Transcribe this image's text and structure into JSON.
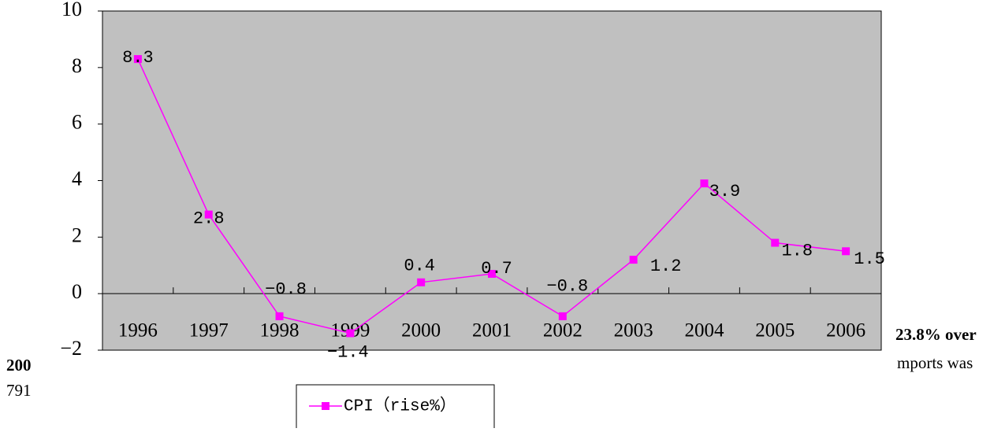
{
  "chart_data": {
    "type": "line",
    "categories": [
      "1996",
      "1997",
      "1998",
      "1999",
      "2000",
      "2001",
      "2002",
      "2003",
      "2004",
      "2005",
      "2006"
    ],
    "series": [
      {
        "name": "CPI（rise%）",
        "color": "#ff00ff",
        "values": [
          8.3,
          2.8,
          -0.8,
          -1.4,
          0.4,
          0.7,
          -0.8,
          1.2,
          3.9,
          1.8,
          1.5
        ],
        "value_labels": [
          "8.3",
          "2.8",
          "−0.8",
          "−1.4",
          "0.4",
          "0.7",
          "−0.8",
          "1.2",
          "3.9",
          "1.8",
          "1.5"
        ]
      }
    ],
    "ylim": [
      -2,
      10
    ],
    "yticks": [
      {
        "value": -2,
        "label": "−2"
      },
      0,
      2,
      4,
      6,
      8,
      10
    ],
    "plot_background": "#c0c0c0",
    "legend": "bottom"
  },
  "background_text": [
    "200",
    "791",
    "23.8% over",
    "mports was"
  ]
}
